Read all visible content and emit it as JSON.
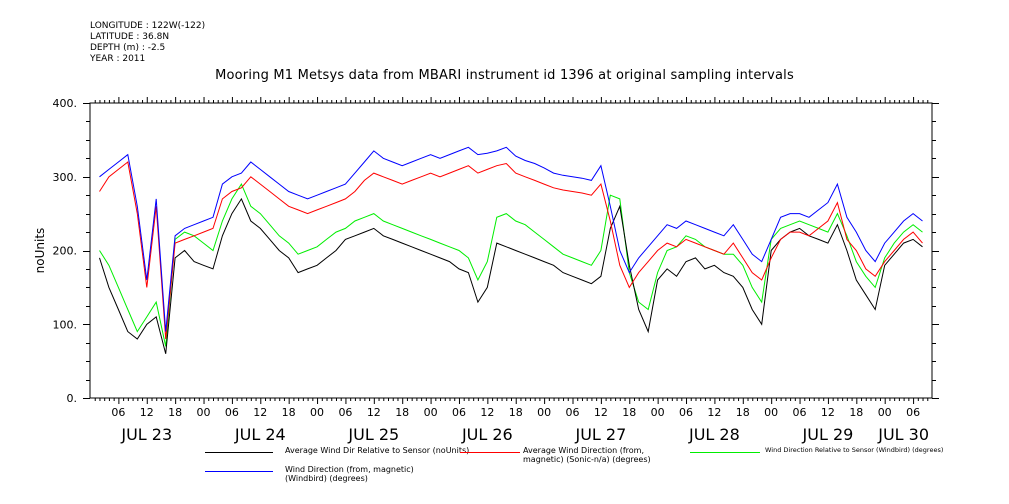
{
  "meta": {
    "longitude": "LONGITUDE : 122W(-122)",
    "latitude": "LATITUDE : 36.8N",
    "depth": "DEPTH (m) : -2.5",
    "year": "YEAR : 2011"
  },
  "chart_data": {
    "type": "line",
    "title": "Mooring M1 Metsys data from MBARI instrument id 1396 at original sampling intervals",
    "ylabel": "noUnits",
    "xlabel": "",
    "ylim": [
      0,
      400
    ],
    "yticks": [
      0,
      100,
      200,
      300,
      400
    ],
    "x_units": "hours since JUL 23 00:00",
    "xlim": [
      2,
      176
    ],
    "hour_ticks": [
      "06",
      "12",
      "18",
      "00",
      "06",
      "12",
      "18",
      "00",
      "06",
      "12",
      "18",
      "00",
      "06",
      "12",
      "18",
      "00",
      "06",
      "12",
      "18",
      "00",
      "06",
      "12",
      "18",
      "00",
      "06",
      "12",
      "18",
      "00",
      "06",
      "12",
      "18",
      "00"
    ],
    "day_labels": [
      {
        "label": "JUL 23",
        "x": 12
      },
      {
        "label": "JUL 24",
        "x": 36
      },
      {
        "label": "JUL 25",
        "x": 60
      },
      {
        "label": "JUL 26",
        "x": 84
      },
      {
        "label": "JUL 27",
        "x": 108
      },
      {
        "label": "JUL 28",
        "x": 132
      },
      {
        "label": "JUL 29",
        "x": 156
      },
      {
        "label": "JUL 30",
        "x": 172
      }
    ],
    "grid": false,
    "series": [
      {
        "name": "Average Wind Dir Relative to Sensor (noUnits)",
        "color": "#000000",
        "x": [
          2,
          4,
          6,
          8,
          10,
          12,
          14,
          16,
          18,
          20,
          22,
          24,
          26,
          28,
          30,
          32,
          34,
          36,
          38,
          40,
          42,
          44,
          46,
          48,
          50,
          52,
          54,
          56,
          58,
          60,
          62,
          64,
          66,
          68,
          70,
          72,
          74,
          76,
          78,
          80,
          82,
          84,
          86,
          88,
          90,
          92,
          94,
          96,
          98,
          100,
          102,
          104,
          106,
          108,
          110,
          112,
          114,
          116,
          118,
          120,
          122,
          124,
          126,
          128,
          130,
          132,
          134,
          136,
          138,
          140,
          142,
          144,
          146,
          148,
          150,
          152,
          154,
          156,
          158,
          160,
          162,
          164,
          166,
          168,
          170,
          172,
          174,
          176
        ],
        "y": [
          190,
          150,
          120,
          90,
          80,
          100,
          110,
          60,
          190,
          200,
          185,
          180,
          175,
          220,
          250,
          270,
          240,
          230,
          215,
          200,
          190,
          170,
          175,
          180,
          190,
          200,
          215,
          220,
          225,
          230,
          220,
          215,
          210,
          205,
          200,
          195,
          190,
          185,
          175,
          170,
          130,
          150,
          210,
          205,
          200,
          195,
          190,
          185,
          180,
          170,
          165,
          160,
          155,
          165,
          230,
          260,
          180,
          120,
          90,
          160,
          175,
          165,
          185,
          190,
          175,
          180,
          170,
          165,
          150,
          120,
          100,
          200,
          215,
          225,
          230,
          220,
          215,
          210,
          235,
          200,
          160,
          140,
          120,
          180,
          195,
          210,
          215,
          205
        ]
      },
      {
        "name": "Average Wind Direction (from, magnetic) (Sonic-n/a) (degrees)",
        "color": "#ff0000",
        "x": [
          2,
          4,
          6,
          8,
          10,
          12,
          14,
          16,
          18,
          20,
          22,
          24,
          26,
          28,
          30,
          32,
          34,
          36,
          38,
          40,
          42,
          44,
          46,
          48,
          50,
          52,
          54,
          56,
          58,
          60,
          62,
          64,
          66,
          68,
          70,
          72,
          74,
          76,
          78,
          80,
          82,
          84,
          86,
          88,
          90,
          92,
          94,
          96,
          98,
          100,
          102,
          104,
          106,
          108,
          110,
          112,
          114,
          116,
          118,
          120,
          122,
          124,
          126,
          128,
          130,
          132,
          134,
          136,
          138,
          140,
          142,
          144,
          146,
          148,
          150,
          152,
          154,
          156,
          158,
          160,
          162,
          164,
          166,
          168,
          170,
          172,
          174,
          176
        ],
        "y": [
          280,
          300,
          310,
          320,
          250,
          150,
          260,
          80,
          210,
          215,
          220,
          225,
          230,
          270,
          280,
          285,
          300,
          290,
          280,
          270,
          260,
          255,
          250,
          255,
          260,
          265,
          270,
          280,
          295,
          305,
          300,
          295,
          290,
          295,
          300,
          305,
          300,
          305,
          310,
          315,
          305,
          310,
          315,
          318,
          305,
          300,
          295,
          290,
          285,
          282,
          280,
          278,
          275,
          290,
          240,
          180,
          150,
          170,
          185,
          200,
          210,
          205,
          215,
          210,
          205,
          200,
          195,
          210,
          190,
          170,
          160,
          190,
          215,
          225,
          225,
          220,
          230,
          240,
          265,
          215,
          200,
          175,
          165,
          185,
          200,
          215,
          225,
          210
        ]
      },
      {
        "name": "Wind Direction Relative to Sensor (Windbird) (degrees)",
        "color": "#00ee00",
        "x": [
          2,
          4,
          6,
          8,
          10,
          12,
          14,
          16,
          18,
          20,
          22,
          24,
          26,
          28,
          30,
          32,
          34,
          36,
          38,
          40,
          42,
          44,
          46,
          48,
          50,
          52,
          54,
          56,
          58,
          60,
          62,
          64,
          66,
          68,
          70,
          72,
          74,
          76,
          78,
          80,
          82,
          84,
          86,
          88,
          90,
          92,
          94,
          96,
          98,
          100,
          102,
          104,
          106,
          108,
          110,
          112,
          114,
          116,
          118,
          120,
          122,
          124,
          126,
          128,
          130,
          132,
          134,
          136,
          138,
          140,
          142,
          144,
          146,
          148,
          150,
          152,
          154,
          156,
          158,
          160,
          162,
          164,
          166,
          168,
          170,
          172,
          174,
          176
        ],
        "y": [
          200,
          180,
          150,
          120,
          90,
          110,
          130,
          70,
          215,
          225,
          220,
          210,
          200,
          240,
          270,
          290,
          260,
          250,
          235,
          220,
          210,
          195,
          200,
          205,
          215,
          225,
          230,
          240,
          245,
          250,
          240,
          235,
          230,
          225,
          220,
          215,
          210,
          205,
          200,
          190,
          160,
          185,
          245,
          250,
          240,
          235,
          225,
          215,
          205,
          195,
          190,
          185,
          180,
          200,
          275,
          270,
          170,
          130,
          120,
          170,
          200,
          205,
          220,
          215,
          205,
          200,
          195,
          195,
          180,
          150,
          130,
          215,
          230,
          235,
          240,
          235,
          230,
          225,
          250,
          220,
          185,
          165,
          150,
          190,
          210,
          225,
          235,
          225
        ]
      },
      {
        "name": "Wind Direction (from, magnetic) (Windbird) (degrees)",
        "color": "#0000ff",
        "x": [
          2,
          4,
          6,
          8,
          10,
          12,
          14,
          16,
          18,
          20,
          22,
          24,
          26,
          28,
          30,
          32,
          34,
          36,
          38,
          40,
          42,
          44,
          46,
          48,
          50,
          52,
          54,
          56,
          58,
          60,
          62,
          64,
          66,
          68,
          70,
          72,
          74,
          76,
          78,
          80,
          82,
          84,
          86,
          88,
          90,
          92,
          94,
          96,
          98,
          100,
          102,
          104,
          106,
          108,
          110,
          112,
          114,
          116,
          118,
          120,
          122,
          124,
          126,
          128,
          130,
          132,
          134,
          136,
          138,
          140,
          142,
          144,
          146,
          148,
          150,
          152,
          154,
          156,
          158,
          160,
          162,
          164,
          166,
          168,
          170,
          172,
          174,
          176
        ],
        "y": [
          300,
          310,
          320,
          330,
          260,
          160,
          270,
          90,
          220,
          230,
          235,
          240,
          245,
          290,
          300,
          305,
          320,
          310,
          300,
          290,
          280,
          275,
          270,
          275,
          280,
          285,
          290,
          305,
          320,
          335,
          325,
          320,
          315,
          320,
          325,
          330,
          325,
          330,
          335,
          340,
          330,
          332,
          335,
          340,
          328,
          322,
          318,
          312,
          305,
          302,
          300,
          298,
          295,
          315,
          260,
          200,
          170,
          190,
          205,
          220,
          235,
          230,
          240,
          235,
          230,
          225,
          220,
          235,
          215,
          195,
          185,
          215,
          245,
          250,
          250,
          245,
          255,
          265,
          290,
          245,
          225,
          200,
          185,
          210,
          225,
          240,
          250,
          240
        ]
      }
    ]
  }
}
